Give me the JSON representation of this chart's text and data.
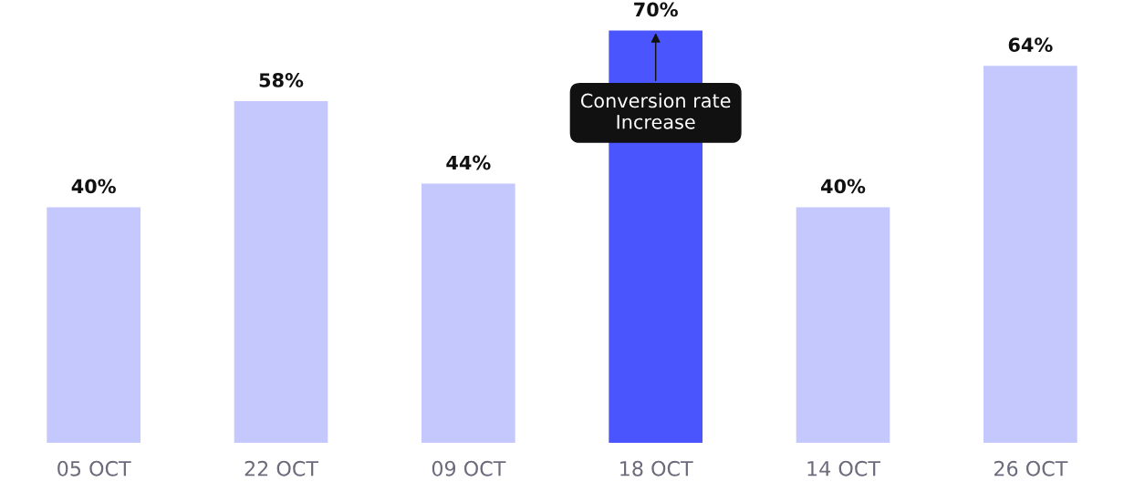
{
  "chart_data": {
    "type": "bar",
    "categories": [
      "05 OCT",
      "22 OCT",
      "09 OCT",
      "18 OCT",
      "14 OCT",
      "26 OCT"
    ],
    "values": [
      40,
      58,
      44,
      70,
      40,
      64
    ],
    "value_labels": [
      "40%",
      "58%",
      "44%",
      "70%",
      "40%",
      "64%"
    ],
    "colors": [
      "#c5c8fd",
      "#c5c8fd",
      "#c5c8fd",
      "#4b55fd",
      "#c5c8fd",
      "#c5c8fd"
    ],
    "tick_labels": "x",
    "grid": false,
    "annotations": [
      {
        "text": "Conversion rate\nIncrease",
        "x": "18 OCT",
        "y": 70
      }
    ]
  }
}
